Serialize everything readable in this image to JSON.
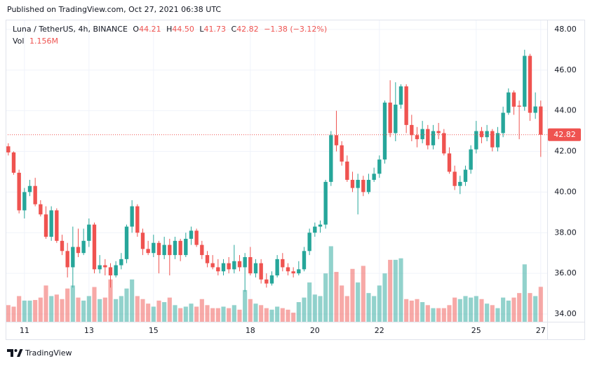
{
  "header": "Published on TradingView.com, Oct 27, 2021 06:38 UTC",
  "footer": "TradingView",
  "chart_data": {
    "type": "candlestick",
    "symbol": "Luna / TetherUS, 4h, BINANCE",
    "legend": {
      "labels": [
        "O",
        "H",
        "L",
        "C"
      ],
      "values": [
        "44.21",
        "44.50",
        "41.73",
        "42.82"
      ]
    },
    "change": "−1.38 (−3.12%)",
    "volume_name": "Vol",
    "volume_last_label": "1.156M",
    "up_color": "#26a69a",
    "down_color": "#ef5350",
    "grid": true,
    "last_price_line": true,
    "ylim": [
      33.62,
      48.48
    ],
    "yticks": [
      {
        "value": 34,
        "label": "34.00"
      },
      {
        "value": 36,
        "label": "36.00"
      },
      {
        "value": 38,
        "label": "38.00"
      },
      {
        "value": 40,
        "label": "40.00"
      },
      {
        "value": 42,
        "label": "42.00"
      },
      {
        "value": 44,
        "label": "44.00"
      },
      {
        "value": 46,
        "label": "46.00"
      },
      {
        "value": 48,
        "label": "48.00"
      }
    ],
    "xlim": [
      -0.5,
      100.2
    ],
    "xticks": [
      {
        "value": 3,
        "label": "11"
      },
      {
        "value": 15,
        "label": "13"
      },
      {
        "value": 27,
        "label": "15"
      },
      {
        "value": 45,
        "label": "18"
      },
      {
        "value": 57,
        "label": "20"
      },
      {
        "value": 69,
        "label": "22"
      },
      {
        "value": 87,
        "label": "25"
      },
      {
        "value": 99,
        "label": "27"
      }
    ],
    "ohlc": [
      [
        42.25,
        42.4,
        41.8,
        41.95
      ],
      [
        41.95,
        42.0,
        40.85,
        40.95
      ],
      [
        40.95,
        41.1,
        38.95,
        39.1
      ],
      [
        39.1,
        40.2,
        38.7,
        40.0
      ],
      [
        40.0,
        40.6,
        39.8,
        40.3
      ],
      [
        40.3,
        40.7,
        39.3,
        39.4
      ],
      [
        39.4,
        39.6,
        38.8,
        38.9
      ],
      [
        38.9,
        39.3,
        37.7,
        37.8
      ],
      [
        37.8,
        39.3,
        37.6,
        39.1
      ],
      [
        39.1,
        39.2,
        37.5,
        37.6
      ],
      [
        37.6,
        37.9,
        36.9,
        37.1
      ],
      [
        37.1,
        37.5,
        35.8,
        36.3
      ],
      [
        36.3,
        38.3,
        35.3,
        37.3
      ],
      [
        37.3,
        38.2,
        36.8,
        37.0
      ],
      [
        37.0,
        38.2,
        36.9,
        37.6
      ],
      [
        37.6,
        38.7,
        37.3,
        38.4
      ],
      [
        38.4,
        38.5,
        36.0,
        36.2
      ],
      [
        36.2,
        36.9,
        36.0,
        36.4
      ],
      [
        36.4,
        36.7,
        35.9,
        36.3
      ],
      [
        36.3,
        36.5,
        35.3,
        35.9
      ],
      [
        35.9,
        36.6,
        35.8,
        36.4
      ],
      [
        36.4,
        37.0,
        36.2,
        36.7
      ],
      [
        36.7,
        38.4,
        36.5,
        38.3
      ],
      [
        38.3,
        39.6,
        38.0,
        39.3
      ],
      [
        39.3,
        39.4,
        37.8,
        38.0
      ],
      [
        38.0,
        38.2,
        36.9,
        37.2
      ],
      [
        37.2,
        37.6,
        36.9,
        37.0
      ],
      [
        37.0,
        37.9,
        36.8,
        37.5
      ],
      [
        37.5,
        37.6,
        36.0,
        36.9
      ],
      [
        36.9,
        37.8,
        36.7,
        37.4
      ],
      [
        37.4,
        37.7,
        35.9,
        36.9
      ],
      [
        36.9,
        37.8,
        36.7,
        37.6
      ],
      [
        37.6,
        37.7,
        36.6,
        36.9
      ],
      [
        36.9,
        38.0,
        36.8,
        37.7
      ],
      [
        37.7,
        38.3,
        37.4,
        38.1
      ],
      [
        38.1,
        38.2,
        37.3,
        37.4
      ],
      [
        37.4,
        37.6,
        36.7,
        36.9
      ],
      [
        36.9,
        37.1,
        36.3,
        36.5
      ],
      [
        36.5,
        36.9,
        36.2,
        36.3
      ],
      [
        36.3,
        36.7,
        35.9,
        36.1
      ],
      [
        36.1,
        36.7,
        35.9,
        36.5
      ],
      [
        36.5,
        36.8,
        36.0,
        36.2
      ],
      [
        36.2,
        37.4,
        36.0,
        36.6
      ],
      [
        36.6,
        36.9,
        36.1,
        36.3
      ],
      [
        36.3,
        37.0,
        35.1,
        36.8
      ],
      [
        36.8,
        37.3,
        35.9,
        36.0
      ],
      [
        36.0,
        36.7,
        35.8,
        36.5
      ],
      [
        36.5,
        36.7,
        35.5,
        35.7
      ],
      [
        35.7,
        36.0,
        35.3,
        35.5
      ],
      [
        35.5,
        36.1,
        35.4,
        35.9
      ],
      [
        35.9,
        36.9,
        35.8,
        36.7
      ],
      [
        36.7,
        37.0,
        36.1,
        36.3
      ],
      [
        36.3,
        36.5,
        35.9,
        36.1
      ],
      [
        36.1,
        36.3,
        35.8,
        36.0
      ],
      [
        36.0,
        36.6,
        35.9,
        36.2
      ],
      [
        36.2,
        37.3,
        36.1,
        37.1
      ],
      [
        37.1,
        38.2,
        36.9,
        38.0
      ],
      [
        38.0,
        38.5,
        37.8,
        38.3
      ],
      [
        38.3,
        38.6,
        38.0,
        38.4
      ],
      [
        38.4,
        40.6,
        38.2,
        40.5
      ],
      [
        40.5,
        43.0,
        40.3,
        42.8
      ],
      [
        42.8,
        44.0,
        42.0,
        42.3
      ],
      [
        42.3,
        42.5,
        41.3,
        41.5
      ],
      [
        41.5,
        41.8,
        40.5,
        40.6
      ],
      [
        40.6,
        41.0,
        40.0,
        40.2
      ],
      [
        40.2,
        40.9,
        38.9,
        40.6
      ],
      [
        40.6,
        40.8,
        39.8,
        40.0
      ],
      [
        40.0,
        40.9,
        39.9,
        40.6
      ],
      [
        40.6,
        41.2,
        40.5,
        40.9
      ],
      [
        40.9,
        41.8,
        40.7,
        41.6
      ],
      [
        41.6,
        44.5,
        41.4,
        44.4
      ],
      [
        44.4,
        45.5,
        42.7,
        42.9
      ],
      [
        42.9,
        45.4,
        42.5,
        44.3
      ],
      [
        44.3,
        45.3,
        44.1,
        45.2
      ],
      [
        45.2,
        45.3,
        42.9,
        43.3
      ],
      [
        43.3,
        43.8,
        42.5,
        42.8
      ],
      [
        42.8,
        43.2,
        42.2,
        42.6
      ],
      [
        42.6,
        43.5,
        42.4,
        43.1
      ],
      [
        43.1,
        43.3,
        42.1,
        42.3
      ],
      [
        42.3,
        43.3,
        42.1,
        43.0
      ],
      [
        43.0,
        43.4,
        42.6,
        42.9
      ],
      [
        42.9,
        43.1,
        41.8,
        41.9
      ],
      [
        41.9,
        42.2,
        40.9,
        41.0
      ],
      [
        41.0,
        41.3,
        40.1,
        40.3
      ],
      [
        40.3,
        40.8,
        39.9,
        40.5
      ],
      [
        40.5,
        41.3,
        40.3,
        41.1
      ],
      [
        41.1,
        42.3,
        40.9,
        42.1
      ],
      [
        42.1,
        43.5,
        41.9,
        43.0
      ],
      [
        43.0,
        43.2,
        42.4,
        42.7
      ],
      [
        42.7,
        43.3,
        42.5,
        43.0
      ],
      [
        43.0,
        43.1,
        42.0,
        42.2
      ],
      [
        42.2,
        43.2,
        42.0,
        42.9
      ],
      [
        42.9,
        44.2,
        42.7,
        43.9
      ],
      [
        43.9,
        45.1,
        43.8,
        44.9
      ],
      [
        44.9,
        45.0,
        43.8,
        44.2
      ],
      [
        44.25,
        44.5,
        42.6,
        44.2
      ],
      [
        44.2,
        47.0,
        44.0,
        46.7
      ],
      [
        46.7,
        46.8,
        43.5,
        43.9
      ],
      [
        43.9,
        44.9,
        43.6,
        44.21
      ],
      [
        44.21,
        44.5,
        41.73,
        42.82
      ]
    ],
    "volume": [
      0.55,
      0.5,
      0.85,
      0.7,
      0.7,
      0.72,
      0.8,
      1.2,
      0.85,
      0.9,
      0.75,
      1.1,
      1.2,
      0.8,
      0.7,
      0.85,
      1.15,
      0.75,
      0.8,
      1.4,
      0.75,
      0.85,
      1.1,
      1.4,
      0.85,
      0.75,
      0.6,
      0.5,
      0.7,
      0.65,
      0.8,
      0.55,
      0.45,
      0.5,
      0.6,
      0.5,
      0.75,
      0.55,
      0.45,
      0.45,
      0.5,
      0.45,
      0.55,
      0.4,
      1.05,
      0.75,
      0.6,
      0.55,
      0.45,
      0.4,
      0.5,
      0.45,
      0.4,
      0.3,
      0.65,
      0.8,
      1.3,
      0.9,
      0.85,
      1.6,
      2.5,
      1.65,
      1.2,
      0.85,
      1.75,
      1.3,
      1.85,
      0.95,
      0.85,
      1.2,
      1.6,
      2.05,
      2.05,
      2.1,
      0.75,
      0.7,
      0.75,
      0.65,
      0.55,
      0.45,
      0.45,
      0.45,
      0.55,
      0.8,
      0.75,
      0.85,
      0.8,
      0.85,
      0.75,
      0.6,
      0.55,
      0.45,
      0.8,
      0.7,
      0.8,
      0.95,
      1.9,
      0.95,
      0.85,
      1.156
    ]
  }
}
